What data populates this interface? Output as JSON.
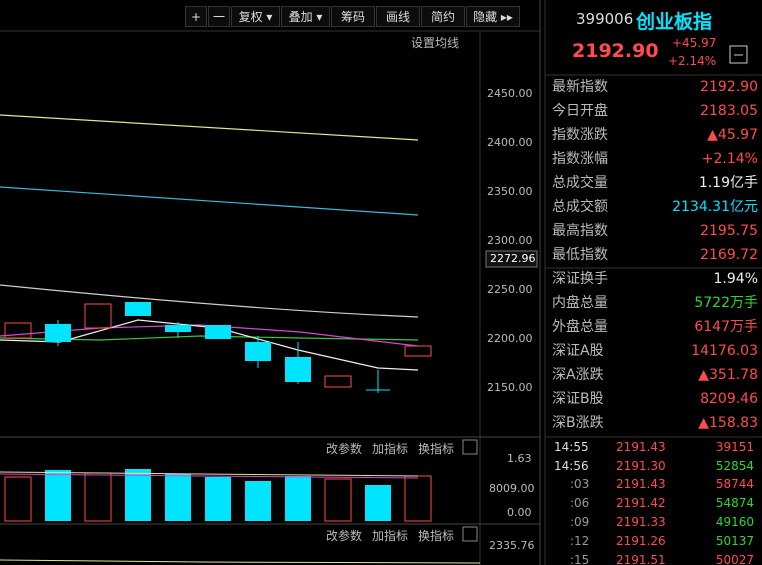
{
  "toolbar": {
    "buttons": [
      "+",
      "一",
      "复权 ▾",
      "叠加 ▾",
      "筹码",
      "画线",
      "简约",
      "隐藏 ▸▸"
    ]
  },
  "chart": {
    "ma_setting": "设置均线",
    "price_axis": [
      "2450.00",
      "2400.00",
      "2350.00",
      "2300.00",
      "2250.00",
      "2200.00",
      "2150.00"
    ],
    "current_price": "2272.96",
    "volume_panel": {
      "actions": [
        "改参数",
        "加指标",
        "换指标"
      ],
      "axis": [
        "1.63",
        "8009.00",
        "0.00"
      ]
    },
    "second_panel": {
      "actions": [
        "改参数",
        "加指标",
        "换指标"
      ],
      "axis": [
        "2335.76"
      ]
    }
  },
  "quote": {
    "code": "399006",
    "name": "创业板指",
    "price": "2192.90",
    "change": "+45.97",
    "change_pct": "+2.14%",
    "rows": [
      [
        "最新指数",
        "2192.90"
      ],
      [
        "今日开盘",
        "2183.05"
      ],
      [
        "指数涨跌",
        "▲45.97"
      ],
      [
        "指数涨幅",
        "+2.14%"
      ],
      [
        "总成交量",
        "1.19亿手"
      ],
      [
        "总成交额",
        "2134.31亿元"
      ],
      [
        "最高指数",
        "2195.75"
      ],
      [
        "最低指数",
        "2169.72"
      ]
    ],
    "rows2": [
      [
        "深证换手",
        "1.94%"
      ],
      [
        "内盘总量",
        "5722万手"
      ],
      [
        "外盘总量",
        "6147万手"
      ],
      [
        "深证A股",
        "14176.03"
      ],
      [
        "深A涨跌",
        "▲351.78"
      ],
      [
        "深证B股",
        "8209.46"
      ],
      [
        "深B涨跌",
        "▲158.83"
      ]
    ],
    "ticks": [
      [
        "14:55",
        "2191.43",
        "39151"
      ],
      [
        "14:56",
        "2191.30",
        "52854"
      ],
      [
        ":03",
        "2191.43",
        "58744"
      ],
      [
        ":06",
        "2191.42",
        "54874"
      ],
      [
        ":09",
        "2191.33",
        "49160"
      ],
      [
        ":12",
        "2191.26",
        "50137"
      ],
      [
        ":15",
        "2191.51",
        "50027"
      ]
    ]
  }
}
